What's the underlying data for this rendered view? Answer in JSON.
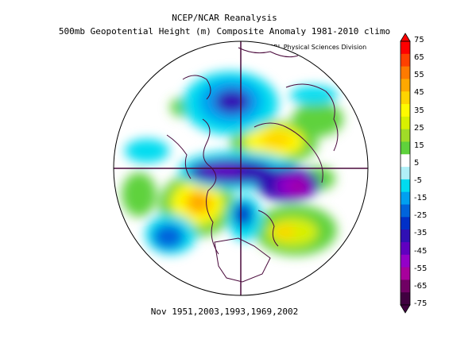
{
  "title_line1": "NCEP/NCAR Reanalysis",
  "title_line2": "500mb Geopotential Height (m) Composite Anomaly 1981-2010 climo",
  "credit": "NOAA/ESRL Physical Sciences Division",
  "caption": "Nov 1951,2003,1993,1969,2002",
  "colorbar": {
    "ticks": [
      "75",
      "65",
      "55",
      "45",
      "35",
      "25",
      "15",
      "5",
      "-5",
      "-15",
      "-25",
      "-35",
      "-45",
      "-55",
      "-65",
      "-75"
    ],
    "colors": [
      "#ff0000",
      "#ff4000",
      "#ff7a00",
      "#ffa800",
      "#ffd400",
      "#fffa00",
      "#d8f000",
      "#a0dc28",
      "#5fd23c",
      "#ffffff",
      "#b0f0f8",
      "#00dcf0",
      "#00a0f0",
      "#0064dc",
      "#0030c8",
      "#3010b4",
      "#6000c0",
      "#9400c8",
      "#a8009c",
      "#700064",
      "#400040"
    ],
    "range": [
      -75,
      75
    ]
  },
  "map": {
    "projection": "north-polar-stereographic",
    "variable": "500mb geopotential height anomaly",
    "units": "m",
    "anomaly_features": [
      {
        "region": "Siberia",
        "sign": "positive",
        "color": "#fffa00"
      },
      {
        "region": "Western North Pacific / Aleutians",
        "sign": "positive",
        "color": "#ffd400"
      },
      {
        "region": "North Atlantic",
        "sign": "positive",
        "color": "#d8f000"
      },
      {
        "region": "Northern Europe / Scandinavia",
        "sign": "negative",
        "color": "#9400c8"
      },
      {
        "region": "Arctic / Greenland",
        "sign": "negative",
        "color": "#3010b4"
      },
      {
        "region": "Hudson Bay",
        "sign": "negative",
        "color": "#6000c0"
      },
      {
        "region": "North Pacific subtropics",
        "sign": "negative",
        "color": "#0064dc"
      },
      {
        "region": "Western Europe",
        "sign": "negative",
        "color": "#0030c8"
      }
    ]
  }
}
